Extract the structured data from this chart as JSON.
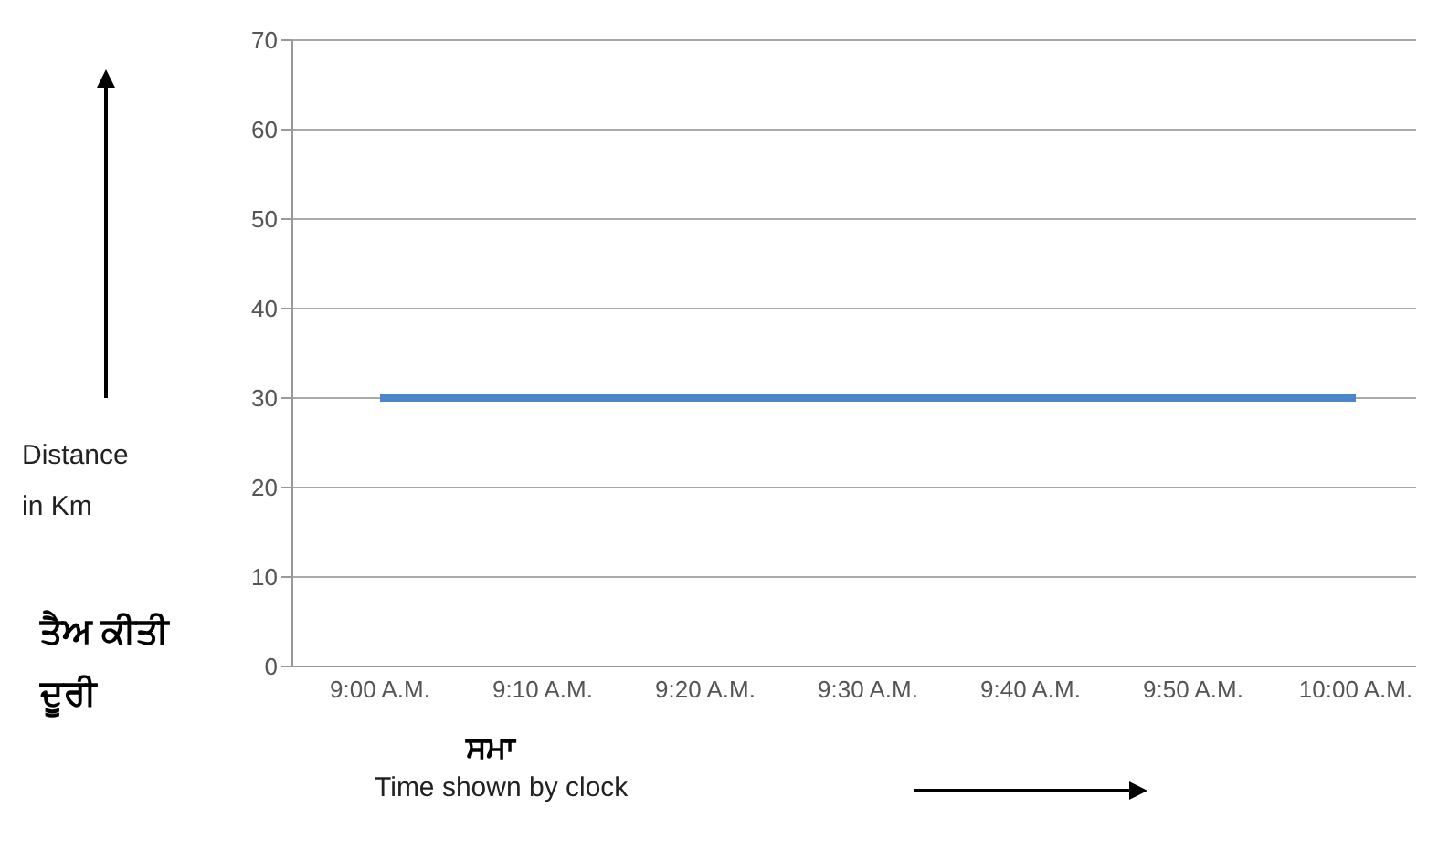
{
  "chart_data": {
    "type": "line",
    "categories": [
      "9:00 A.M.",
      "9:10 A.M.",
      "9:20 A.M.",
      "9:30 A.M.",
      "9:40 A.M.",
      "9:50 A.M.",
      "10:00 A.M."
    ],
    "series": [
      {
        "color": "#4a86c8",
        "values": [
          30,
          30,
          30,
          30,
          30,
          30,
          30
        ]
      }
    ],
    "ylabel": "Distance\nin Km",
    "xlabel": "Time shown by clock",
    "annotations": [
      "ਤੈਅ ਕੀਤੀ\nਦੂਰੀ",
      "ਸਮਾ"
    ],
    "ylim": [
      0,
      70
    ],
    "yticks": [
      0,
      10,
      20,
      30,
      40,
      50,
      60,
      70
    ],
    "grid": "y"
  }
}
